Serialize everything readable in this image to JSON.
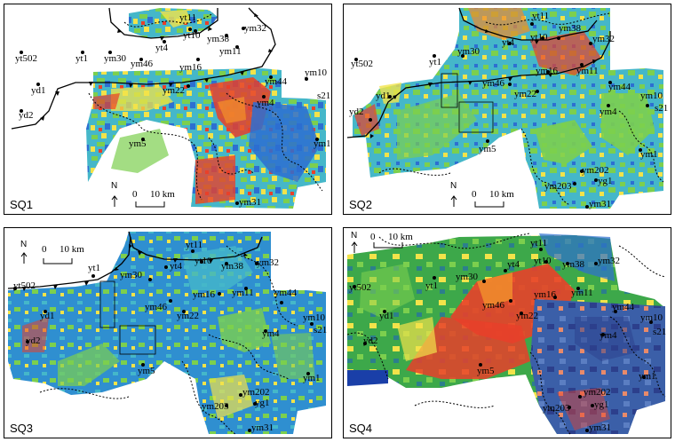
{
  "panels": [
    {
      "id": "sq1",
      "title": "SQ1",
      "scale": {
        "zero": "0",
        "length": "10 km"
      },
      "north": "N"
    },
    {
      "id": "sq2",
      "title": "SQ2",
      "scale": {
        "zero": "0",
        "length": "10 km"
      },
      "north": "N"
    },
    {
      "id": "sq3",
      "title": "SQ3",
      "scale": {
        "zero": "0",
        "length": "10 km"
      },
      "north": "N"
    },
    {
      "id": "sq4",
      "title": "SQ4",
      "scale": {
        "zero": "0",
        "length": "10 km"
      },
      "north": "N"
    }
  ],
  "wells": {
    "yt1": "yt1",
    "yt502": "yt502",
    "yd1": "yd1",
    "yd2": "yd2",
    "ym30": "ym30",
    "ym46": "ym46",
    "yt4": "yt4",
    "yt10": "yt10",
    "yt11": "yt11",
    "ym38": "ym38",
    "ym32": "ym32",
    "ym11": "ym11",
    "ym16": "ym16",
    "ym22": "ym22",
    "ym44": "ym44",
    "ym10": "ym10",
    "s21": "s21",
    "ym4": "ym4",
    "ym5": "ym5",
    "ym1": "ym1",
    "ym31": "ym31",
    "ym202": "ym202",
    "ym203": "ym203",
    "yg1": "yg1"
  },
  "colors": {
    "red": "#e8402a",
    "orange": "#f08a2c",
    "yellow": "#f2e34a",
    "green": "#7ccf4e",
    "cyan": "#45b7c9",
    "blue": "#2d6fd1",
    "darkblue": "#1a3fa8"
  }
}
